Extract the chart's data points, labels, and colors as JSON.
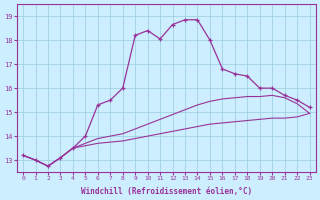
{
  "xlabel": "Windchill (Refroidissement éolien,°C)",
  "bg_color": "#cceeff",
  "line_color": "#993399",
  "grid_color": "#99ccdd",
  "ylim": [
    12.5,
    19.5
  ],
  "xlim": [
    -0.5,
    23.5
  ],
  "yticks": [
    13,
    14,
    15,
    16,
    17,
    18,
    19
  ],
  "xticks": [
    0,
    1,
    2,
    3,
    4,
    5,
    6,
    7,
    8,
    9,
    10,
    11,
    12,
    13,
    14,
    15,
    16,
    17,
    18,
    19,
    20,
    21,
    22,
    23
  ],
  "series1_x": [
    0,
    1,
    2,
    3,
    4,
    5,
    6,
    7,
    8,
    9,
    10,
    11,
    12,
    13,
    14,
    15,
    16,
    17,
    18,
    19,
    20,
    21,
    22,
    23
  ],
  "series1_y": [
    13.2,
    13.0,
    12.75,
    13.1,
    13.5,
    14.0,
    15.3,
    15.5,
    16.0,
    18.2,
    18.4,
    18.05,
    18.65,
    18.85,
    18.85,
    18.0,
    16.8,
    16.6,
    16.5,
    16.0,
    16.0,
    15.7,
    15.5,
    15.2
  ],
  "series2_x": [
    0,
    1,
    2,
    3,
    4,
    5,
    6,
    7,
    8,
    9,
    10,
    11,
    12,
    13,
    14,
    15,
    16,
    17,
    18,
    19,
    20,
    21,
    22,
    23
  ],
  "series2_y": [
    13.2,
    13.0,
    12.75,
    13.1,
    13.5,
    13.7,
    13.9,
    14.0,
    14.1,
    14.3,
    14.5,
    14.7,
    14.9,
    15.1,
    15.3,
    15.45,
    15.55,
    15.6,
    15.65,
    15.65,
    15.7,
    15.6,
    15.35,
    14.95
  ],
  "series3_x": [
    0,
    1,
    2,
    3,
    4,
    5,
    6,
    7,
    8,
    9,
    10,
    11,
    12,
    13,
    14,
    15,
    16,
    17,
    18,
    19,
    20,
    21,
    22,
    23
  ],
  "series3_y": [
    13.2,
    13.0,
    12.75,
    13.1,
    13.5,
    13.6,
    13.7,
    13.75,
    13.8,
    13.9,
    14.0,
    14.1,
    14.2,
    14.3,
    14.4,
    14.5,
    14.55,
    14.6,
    14.65,
    14.7,
    14.75,
    14.75,
    14.8,
    14.95
  ]
}
